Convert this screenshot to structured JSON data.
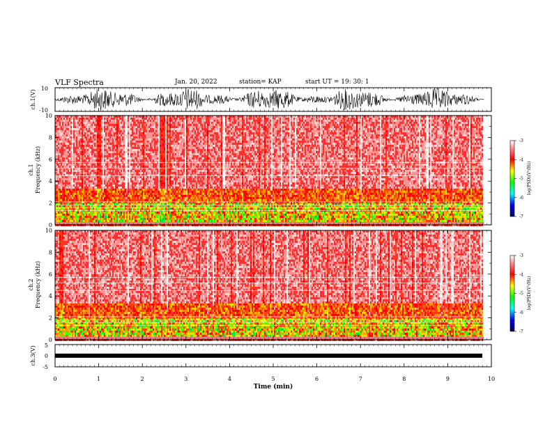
{
  "header": {
    "title": "VLF Spectra",
    "date": "Jan. 20, 2022",
    "station": "station= KAP",
    "start": "start  UT =   19: 30: 1"
  },
  "chart_data": [
    {
      "type": "line",
      "name": "ch1-waveform",
      "ylabel": "ch.1(V)",
      "ylim": [
        -10,
        10
      ],
      "ytick_labels": [
        "10",
        "-10"
      ],
      "xlim": [
        0,
        10
      ]
    },
    {
      "type": "heatmap",
      "name": "ch1-spectrogram",
      "ylabel": "ch.1\nFrequency (kHz)",
      "ylim": [
        0,
        10
      ],
      "ytick_labels": [
        "0",
        "2",
        "4",
        "6",
        "8",
        "10"
      ],
      "xlim": [
        0,
        9.83
      ],
      "colorbar": {
        "label": "log(PSD)(V²/Hz)",
        "range": [
          -7,
          -3
        ],
        "tick_labels": [
          "-3",
          "-4",
          "-5",
          "-6",
          "-7"
        ]
      }
    },
    {
      "type": "heatmap",
      "name": "ch2-spectrogram",
      "ylabel": "ch.2\nFrequency (kHz)",
      "ylim": [
        0,
        10
      ],
      "ytick_labels": [
        "0",
        "2",
        "4",
        "6",
        "8",
        "10"
      ],
      "xlim": [
        0,
        9.83
      ],
      "colorbar": {
        "label": "log(PSD)(V²/Hz)",
        "range": [
          -7,
          -3
        ],
        "tick_labels": [
          "-3",
          "-4",
          "-5",
          "-6",
          "-7"
        ]
      }
    },
    {
      "type": "line",
      "name": "ch3-waveform",
      "ylabel": "ch.3(V)",
      "ylim": [
        -5,
        5
      ],
      "ytick_labels": [
        "5",
        "0",
        "-5"
      ],
      "xlim": [
        0,
        10
      ]
    }
  ],
  "xaxis": {
    "label": "Time (min)",
    "tick_labels": [
      "0",
      "1",
      "2",
      "3",
      "4",
      "5",
      "6",
      "7",
      "8",
      "9",
      "10"
    ]
  },
  "colors": {
    "colormap": [
      "#000080",
      "#0000ff",
      "#00ffff",
      "#00ff00",
      "#ffff00",
      "#ff0000",
      "#ff8080",
      "#ffffff"
    ],
    "trace": "#000000"
  }
}
